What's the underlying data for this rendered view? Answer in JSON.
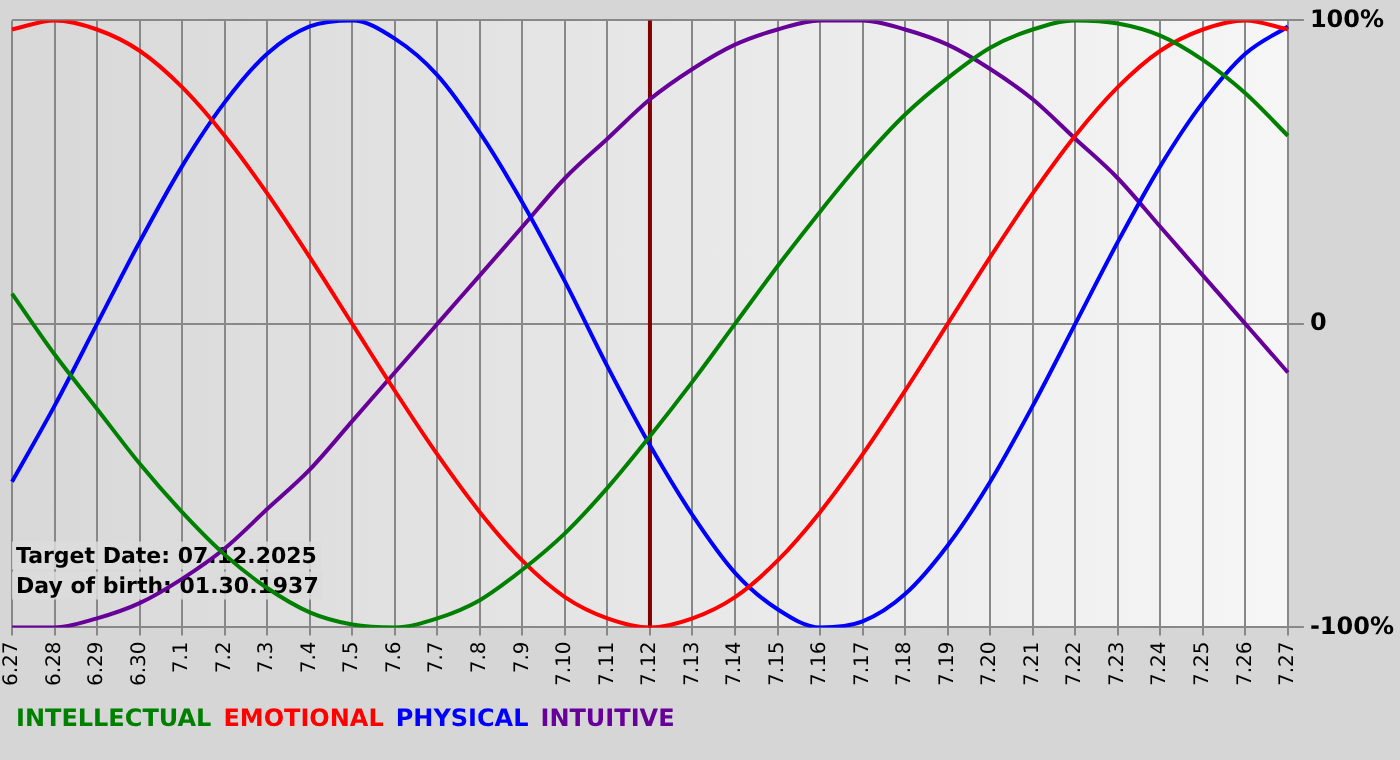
{
  "chart_data": {
    "type": "line",
    "categories": [
      "6.27",
      "6.28",
      "6.29",
      "6.30",
      "7.1",
      "7.2",
      "7.3",
      "7.4",
      "7.5",
      "7.6",
      "7.7",
      "7.8",
      "7.9",
      "7.10",
      "7.11",
      "7.12",
      "7.13",
      "7.14",
      "7.15",
      "7.16",
      "7.17",
      "7.18",
      "7.19",
      "7.20",
      "7.21",
      "7.22",
      "7.23",
      "7.24",
      "7.25",
      "7.26",
      "7.27"
    ],
    "series": [
      {
        "name": "INTELLECTUAL",
        "color": "#008000",
        "values": [
          10,
          -10,
          -28,
          -46,
          -62,
          -76,
          -87,
          -95,
          -99,
          -100,
          -97,
          -91,
          -81,
          -69,
          -54,
          -37,
          -19,
          0,
          19,
          37,
          54,
          69,
          81,
          91,
          97,
          100,
          99,
          95,
          87,
          76,
          62
        ]
      },
      {
        "name": "EMOTIONAL",
        "color": "#ff0000",
        "values": [
          97,
          100,
          97,
          90,
          78,
          62,
          43,
          22,
          0,
          -22,
          -43,
          -62,
          -78,
          -90,
          -97,
          -100,
          -97,
          -90,
          -78,
          -62,
          -43,
          -22,
          0,
          22,
          43,
          62,
          78,
          90,
          97,
          100,
          97
        ]
      },
      {
        "name": "PHYSICAL",
        "color": "#0000ff",
        "values": [
          -52,
          -27,
          0,
          27,
          52,
          73,
          89,
          98,
          100,
          94,
          82,
          63,
          40,
          14,
          -14,
          -40,
          -63,
          -82,
          -94,
          -100,
          -98,
          -89,
          -73,
          -52,
          -27,
          0,
          27,
          52,
          73,
          89,
          98
        ]
      },
      {
        "name": "INTUITIVE",
        "color": "#660099",
        "values": [
          -100,
          -100,
          -97,
          -92,
          -84,
          -74,
          -61,
          -48,
          -32,
          -16,
          0,
          16,
          32,
          48,
          61,
          74,
          84,
          92,
          97,
          100,
          100,
          97,
          92,
          84,
          74,
          61,
          48,
          32,
          16,
          0,
          -16
        ]
      }
    ],
    "ylim": [
      -100,
      100
    ],
    "yticks": [
      {
        "value": -100,
        "label": "-100%"
      },
      0,
      {
        "value": 100,
        "label": "100%"
      }
    ],
    "grid": true,
    "legend": "bottom",
    "marker": "none",
    "ref_lines": [
      {
        "axis": "x",
        "value": "7.12",
        "color": "#800000"
      }
    ],
    "annotations": [
      "Target Date: 07.12.2025",
      "Day of birth: 01.30.1937"
    ]
  }
}
